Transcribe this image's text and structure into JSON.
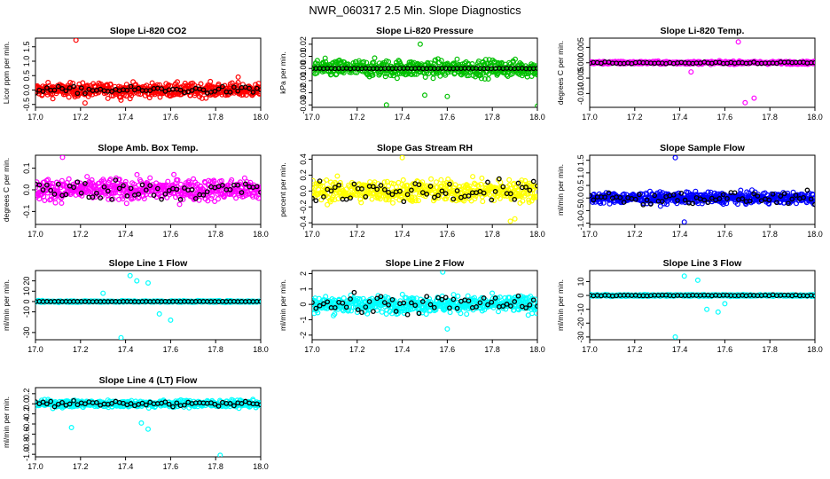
{
  "page": {
    "title": "NWR_060317  2.5 Min. Slope Diagnostics"
  },
  "colors": {
    "primary_black": "#000000"
  },
  "chart_data": [
    {
      "type": "scatter",
      "title": "Slope Li-820 CO2",
      "xlabel": "",
      "ylabel": "Licor ppm per min.",
      "xlim": [
        17.0,
        18.0
      ],
      "ylim": [
        -0.6,
        1.8
      ],
      "xticks": [
        "17.0",
        "17.2",
        "17.4",
        "17.6",
        "17.8",
        "18.0"
      ],
      "yticks": [
        "-0.5",
        "0.0",
        "0.5",
        "1.0",
        "1.5"
      ],
      "color": "#ff0000",
      "summary": {
        "center": 0.0,
        "spread": 0.3
      },
      "outliers": [
        [
          17.18,
          1.73
        ],
        [
          17.22,
          -0.45
        ],
        [
          17.38,
          -0.35
        ],
        [
          17.9,
          0.45
        ]
      ],
      "black_center": 0.0,
      "black_spread": 0.15
    },
    {
      "type": "scatter",
      "title": "Slope Li-820 Pressure",
      "xlabel": "",
      "ylabel": "kPa per min.",
      "xlim": [
        17.0,
        18.0
      ],
      "ylim": [
        -0.032,
        0.025
      ],
      "xticks": [
        "17.0",
        "17.2",
        "17.4",
        "17.6",
        "17.8",
        "18.0"
      ],
      "yticks": [
        "-0.03",
        "-0.02",
        "-0.01",
        "0.00",
        "0.01",
        "0.02"
      ],
      "color": "#00c000",
      "summary": {
        "center": 0.0,
        "spread": 0.009
      },
      "outliers": [
        [
          17.33,
          -0.03
        ],
        [
          17.48,
          0.02
        ],
        [
          17.6,
          -0.023
        ],
        [
          18.0,
          -0.031
        ],
        [
          17.5,
          -0.022
        ]
      ],
      "black_center": 0.0,
      "black_spread": 0.0003
    },
    {
      "type": "scatter",
      "title": "Slope Li-820 Temp.",
      "xlabel": "",
      "ylabel": "degrees C per min.",
      "xlim": [
        17.0,
        18.0
      ],
      "ylim": [
        -0.0145,
        0.008
      ],
      "xticks": [
        "17.0",
        "17.2",
        "17.4",
        "17.6",
        "17.8",
        "18.0"
      ],
      "yticks": [
        "-0.010",
        "-0.005",
        "0.000",
        "0.005"
      ],
      "color": "#ff00ff",
      "summary": {
        "center": 0.0,
        "spread": 0.0006
      },
      "outliers": [
        [
          17.66,
          0.0068
        ],
        [
          17.69,
          -0.013
        ],
        [
          17.73,
          -0.0115
        ],
        [
          17.45,
          -0.003
        ]
      ],
      "black_center": 0.0,
      "black_spread": 0.0004
    },
    {
      "type": "scatter",
      "title": "Slope Amb. Box Temp.",
      "xlabel": "",
      "ylabel": "degrees C per min.",
      "xlim": [
        17.0,
        18.0
      ],
      "ylim": [
        -0.16,
        0.16
      ],
      "xticks": [
        "17.0",
        "17.2",
        "17.4",
        "17.6",
        "17.8",
        "18.0"
      ],
      "yticks": [
        "-0.1",
        "0.0",
        "0.1"
      ],
      "color": "#ff00ff",
      "summary": {
        "center": 0.0,
        "spread": 0.065
      },
      "outliers": [
        [
          17.12,
          0.15
        ]
      ],
      "black_center": 0.0,
      "black_spread": 0.06
    },
    {
      "type": "scatter",
      "title": "Slope Gas Stream RH",
      "xlabel": "",
      "ylabel": "percent per min.",
      "xlim": [
        17.0,
        18.0
      ],
      "ylim": [
        -0.42,
        0.45
      ],
      "xticks": [
        "17.0",
        "17.2",
        "17.4",
        "17.6",
        "17.8",
        "18.0"
      ],
      "yticks": [
        "-0.4",
        "-0.2",
        "0.0",
        "0.2",
        "0.4"
      ],
      "color": "#ffff00",
      "summary": {
        "center": 0.0,
        "spread": 0.18
      },
      "outliers": [
        [
          17.4,
          0.42
        ],
        [
          17.88,
          -0.38
        ],
        [
          17.9,
          -0.35
        ]
      ],
      "black_center": 0.0,
      "black_spread": 0.18
    },
    {
      "type": "scatter",
      "title": "Slope Sample Flow",
      "xlabel": "",
      "ylabel": "ml/min per min.",
      "xlim": [
        17.0,
        18.0
      ],
      "ylim": [
        -1.05,
        1.7
      ],
      "xticks": [
        "17.0",
        "17.2",
        "17.4",
        "17.6",
        "17.8",
        "18.0"
      ],
      "yticks": [
        "-1.0",
        "-0.5",
        "0.0",
        "0.5",
        "1.0",
        "1.5"
      ],
      "color": "#0000ff",
      "summary": {
        "center": 0.0,
        "spread": 0.28
      },
      "outliers": [
        [
          17.38,
          1.6
        ],
        [
          17.42,
          -0.95
        ]
      ],
      "black_center": 0.0,
      "black_spread": 0.3
    },
    {
      "type": "scatter",
      "title": "Slope Line 1 Flow",
      "xlabel": "",
      "ylabel": "ml/min per min.",
      "xlim": [
        17.0,
        18.0
      ],
      "ylim": [
        -37,
        30
      ],
      "xticks": [
        "17.0",
        "17.2",
        "17.4",
        "17.6",
        "17.8",
        "18.0"
      ],
      "yticks": [
        "-30",
        "-10",
        "0",
        "10",
        "20"
      ],
      "color": "#00ffff",
      "summary": {
        "center": 0.0,
        "spread": 1.0
      },
      "outliers": [
        [
          17.38,
          -35
        ],
        [
          17.42,
          25
        ],
        [
          17.45,
          20
        ],
        [
          17.5,
          18
        ],
        [
          17.55,
          -12
        ],
        [
          17.6,
          -18
        ],
        [
          17.3,
          8
        ]
      ],
      "black_center": 0.0,
      "black_spread": 0.2
    },
    {
      "type": "scatter",
      "title": "Slope Line 2 Flow",
      "xlabel": "",
      "ylabel": "ml/min per min.",
      "xlim": [
        17.0,
        18.0
      ],
      "ylim": [
        -2.3,
        2.2
      ],
      "xticks": [
        "17.0",
        "17.2",
        "17.4",
        "17.6",
        "17.8",
        "18.0"
      ],
      "yticks": [
        "-2",
        "-1",
        "0",
        "1",
        "2"
      ],
      "color": "#00ffff",
      "summary": {
        "center": 0.0,
        "spread": 0.7
      },
      "outliers": [
        [
          17.58,
          2.1
        ],
        [
          17.6,
          -1.6
        ]
      ],
      "black_center": 0.0,
      "black_spread": 0.8
    },
    {
      "type": "scatter",
      "title": "Slope Line 3 Flow",
      "xlabel": "",
      "ylabel": "ml/min per min.",
      "xlim": [
        17.0,
        18.0
      ],
      "ylim": [
        -32,
        18
      ],
      "xticks": [
        "17.0",
        "17.2",
        "17.4",
        "17.6",
        "17.8",
        "18.0"
      ],
      "yticks": [
        "-30",
        "-20",
        "-10",
        "0",
        "10"
      ],
      "color": "#00ffff",
      "summary": {
        "center": 0.0,
        "spread": 0.8
      },
      "outliers": [
        [
          17.38,
          -30
        ],
        [
          17.42,
          14
        ],
        [
          17.48,
          11
        ],
        [
          17.52,
          -10
        ],
        [
          17.57,
          -12
        ],
        [
          17.6,
          -6
        ]
      ],
      "black_center": 0.0,
      "black_spread": 0.4
    },
    {
      "type": "scatter",
      "title": "Slope Line 4 (LT) Flow",
      "xlabel": "",
      "ylabel": "ml/min per min.",
      "xlim": [
        17.0,
        18.0
      ],
      "ylim": [
        -1.05,
        0.32
      ],
      "xticks": [
        "17.0",
        "17.2",
        "17.4",
        "17.6",
        "17.8",
        "18.0"
      ],
      "yticks": [
        "-1.0",
        "-0.8",
        "-0.6",
        "-0.4",
        "-0.2",
        "0.0",
        "0.2"
      ],
      "color": "#00ffff",
      "summary": {
        "center": 0.0,
        "spread": 0.09
      },
      "outliers": [
        [
          17.16,
          -0.47
        ],
        [
          17.47,
          -0.38
        ],
        [
          17.5,
          -0.5
        ],
        [
          17.82,
          -1.02
        ]
      ],
      "black_center": 0.0,
      "black_spread": 0.07
    }
  ]
}
